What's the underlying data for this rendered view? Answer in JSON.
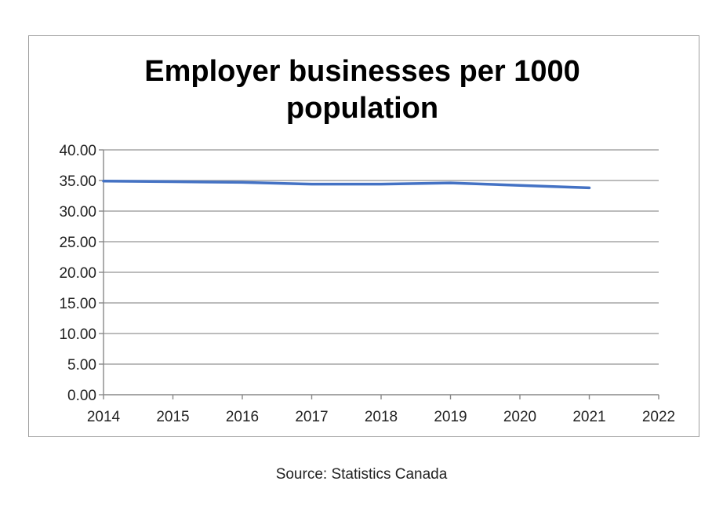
{
  "chart_data": {
    "type": "line",
    "title": "Employer businesses per 1000 population",
    "title_lines": [
      "Employer businesses per 1000",
      "population"
    ],
    "xlabel": "",
    "ylabel": "",
    "x": [
      2014,
      2015,
      2016,
      2017,
      2018,
      2019,
      2020,
      2021
    ],
    "series": [
      {
        "values": [
          34.9,
          34.8,
          34.7,
          34.4,
          34.4,
          34.6,
          34.2,
          33.8
        ],
        "color": "#4472c4"
      }
    ],
    "x_ticks": [
      "2014",
      "2015",
      "2016",
      "2017",
      "2018",
      "2019",
      "2020",
      "2021",
      "2022"
    ],
    "y_ticks": [
      "0.00",
      "5.00",
      "10.00",
      "15.00",
      "20.00",
      "25.00",
      "30.00",
      "35.00",
      "40.00"
    ],
    "xlim": [
      2014,
      2022
    ],
    "ylim": [
      0,
      40
    ],
    "grid": true,
    "legend": "none"
  },
  "source": "Source: Statistics Canada"
}
